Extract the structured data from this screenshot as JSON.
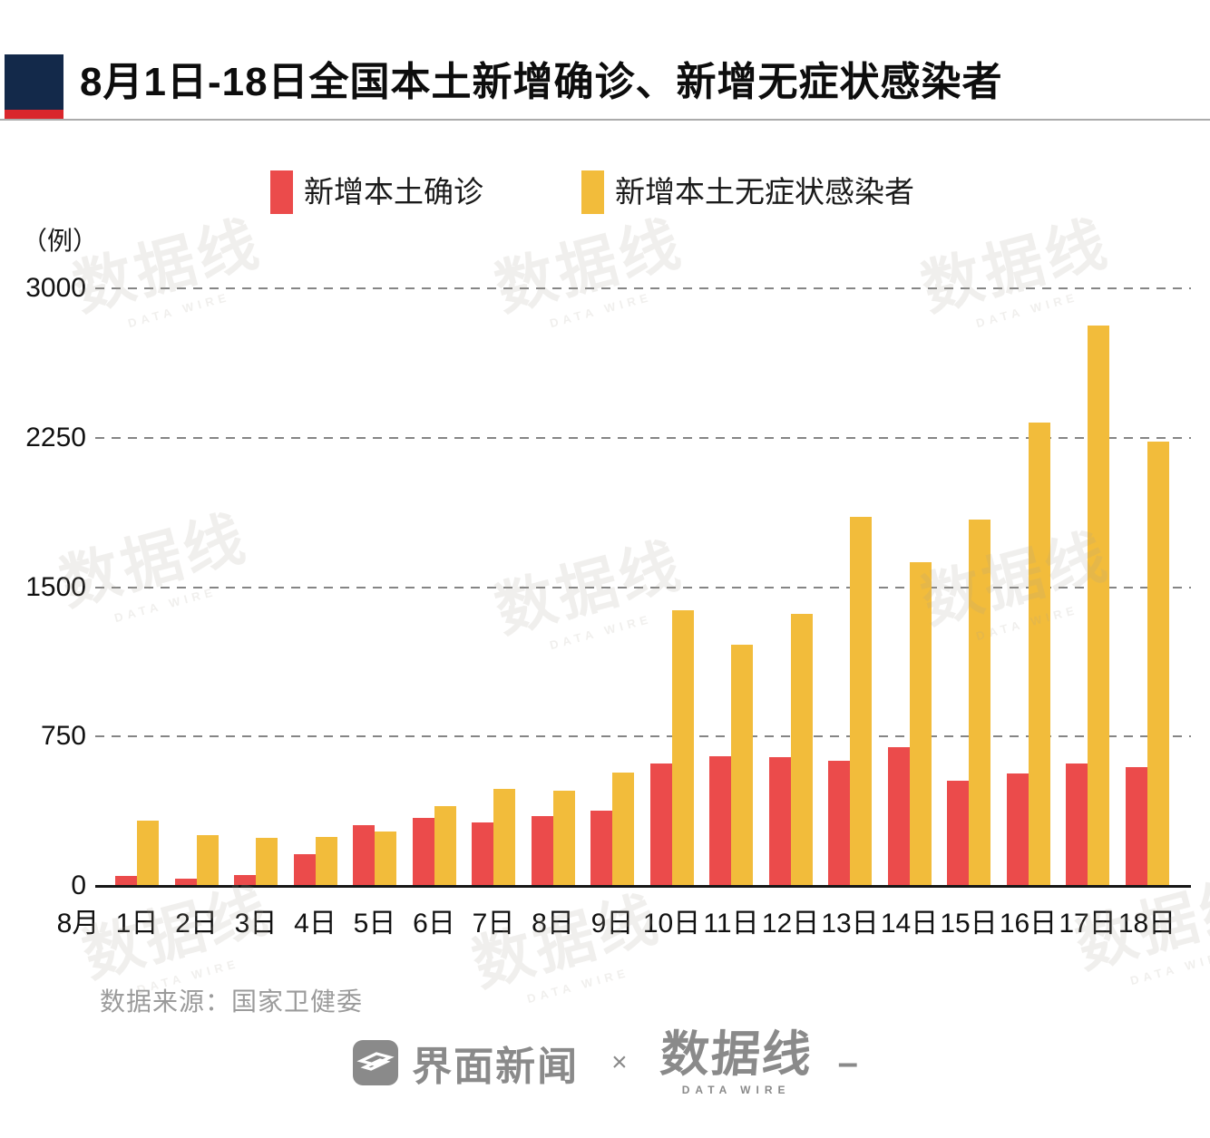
{
  "header": {
    "title": "8月1日-18日全国本土新增确诊、新增无症状感染者"
  },
  "legend": {
    "confirmed": {
      "label": "新增本土确诊",
      "color": "#EB4B4B"
    },
    "asymptomatic": {
      "label": "新增本土无症状感染者",
      "color": "#F2BC3B"
    }
  },
  "chart_data": {
    "type": "bar",
    "title": "8月1日-18日全国本土新增确诊、新增无症状感染者",
    "x_axis_prefix": "8月",
    "categories": [
      "1日",
      "2日",
      "3日",
      "4日",
      "5日",
      "6日",
      "7日",
      "8日",
      "9日",
      "10日",
      "11日",
      "12日",
      "13日",
      "14日",
      "15日",
      "16日",
      "17日",
      "18日"
    ],
    "series": [
      {
        "name": "新增本土确诊",
        "color": "#EB4B4B",
        "values": [
          50,
          35,
          55,
          160,
          305,
          340,
          320,
          350,
          380,
          615,
          650,
          645,
          630,
          695,
          530,
          565,
          615,
          595
        ]
      },
      {
        "name": "新增本土无症状感染者",
        "color": "#F2BC3B",
        "values": [
          330,
          255,
          240,
          245,
          275,
          400,
          485,
          480,
          570,
          1385,
          1210,
          1365,
          1855,
          1625,
          1840,
          2325,
          2815,
          2230
        ]
      }
    ],
    "ylabel": "（例）",
    "ylim": [
      0,
      3000
    ],
    "yticks": [
      0,
      750,
      1500,
      2250,
      3000
    ],
    "grid": "horizontal-dashed",
    "legend_position": "top"
  },
  "source": "数据来源：国家卫健委",
  "footer": {
    "jiemian": "界面新闻",
    "cross": "×",
    "datawire": "数据线",
    "datawire_sub": "DATA WIRE"
  },
  "watermark": {
    "text": "数据线",
    "subtext": "DATA WIRE"
  }
}
